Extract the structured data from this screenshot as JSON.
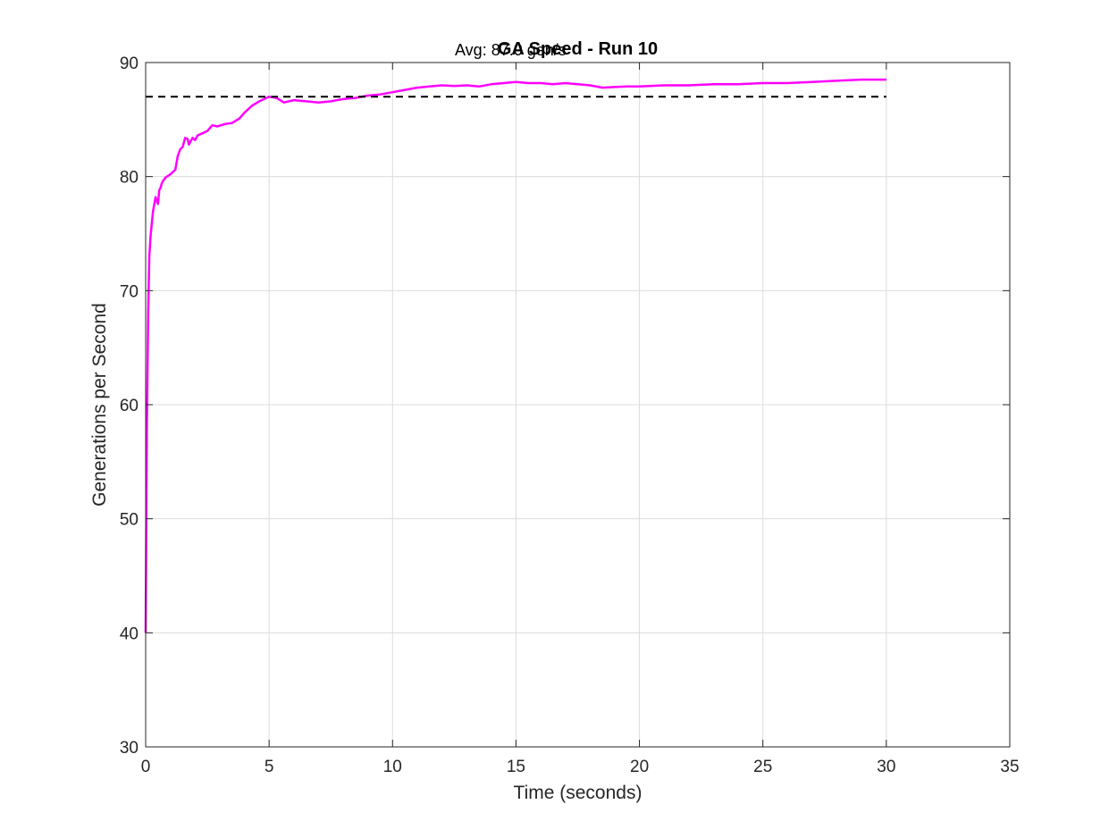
{
  "chart_data": {
    "type": "line",
    "title": "GA Speed - Run 10",
    "annotation": "Avg: 87.0 gen/s",
    "xlabel": "Time (seconds)",
    "ylabel": "Generations per Second",
    "xlim": [
      0,
      35
    ],
    "ylim": [
      30,
      90
    ],
    "xticks": [
      0,
      5,
      10,
      15,
      20,
      25,
      30,
      35
    ],
    "yticks": [
      30,
      40,
      50,
      60,
      70,
      80,
      90
    ],
    "grid": true,
    "colors": {
      "series": "#ff00ff",
      "average": "#000000"
    },
    "series": [
      {
        "x": [
          0,
          0.05,
          0.1,
          0.15,
          0.2,
          0.3,
          0.4,
          0.5,
          0.55,
          0.6,
          0.65,
          0.7,
          0.8,
          1.0,
          1.2,
          1.3,
          1.4,
          1.5,
          1.6,
          1.7,
          1.75,
          1.8,
          1.9,
          2.0,
          2.1,
          2.3,
          2.5,
          2.7,
          2.9,
          3.2,
          3.5,
          3.8,
          4.0,
          4.3,
          4.6,
          5.0,
          5.3,
          5.6,
          6.0,
          6.5,
          7.0,
          7.5,
          8.0,
          8.5,
          9.0,
          9.5,
          10.0,
          10.5,
          11.0,
          11.5,
          12.0,
          12.5,
          13.0,
          13.5,
          14.0,
          14.5,
          15.0,
          15.5,
          16.0,
          16.5,
          17.0,
          17.5,
          18.0,
          18.5,
          19.0,
          19.5,
          20.0,
          21.0,
          22.0,
          23.0,
          24.0,
          25.0,
          26.0,
          27.0,
          28.0,
          29.0,
          30.0
        ],
        "y": [
          40.0,
          58.0,
          68.0,
          73.0,
          74.8,
          77.0,
          78.2,
          77.6,
          78.8,
          79.0,
          79.4,
          79.6,
          79.9,
          80.2,
          80.6,
          81.8,
          82.4,
          82.6,
          83.4,
          83.3,
          82.8,
          83.0,
          83.4,
          83.2,
          83.6,
          83.8,
          84.0,
          84.5,
          84.4,
          84.6,
          84.7,
          85.1,
          85.6,
          86.2,
          86.6,
          87.0,
          86.9,
          86.5,
          86.7,
          86.6,
          86.5,
          86.6,
          86.8,
          86.9,
          87.1,
          87.2,
          87.4,
          87.6,
          87.8,
          87.9,
          88.0,
          87.95,
          88.0,
          87.9,
          88.1,
          88.2,
          88.3,
          88.2,
          88.2,
          88.1,
          88.2,
          88.1,
          88.0,
          87.8,
          87.85,
          87.9,
          87.9,
          88.0,
          88.0,
          88.1,
          88.1,
          88.2,
          88.2,
          88.3,
          88.4,
          88.5,
          88.5
        ]
      },
      {
        "x": [
          0,
          30
        ],
        "y": [
          87.0,
          87.0
        ],
        "style": "dashed"
      }
    ]
  }
}
